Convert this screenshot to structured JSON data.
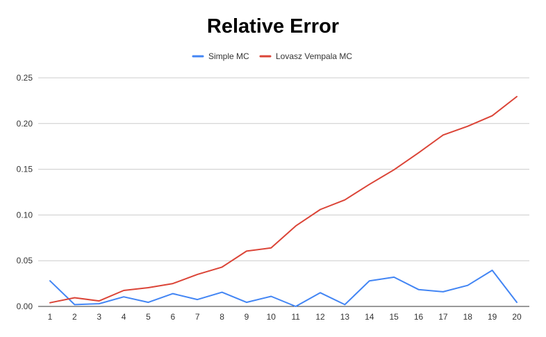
{
  "chart_data": {
    "type": "line",
    "title": "Relative Error",
    "xlabel": "",
    "ylabel": "",
    "categories": [
      "1",
      "2",
      "3",
      "4",
      "5",
      "6",
      "7",
      "8",
      "9",
      "10",
      "11",
      "12",
      "13",
      "14",
      "15",
      "16",
      "17",
      "18",
      "19",
      "20"
    ],
    "ylim": [
      0,
      0.25
    ],
    "yticks": [
      "0.00",
      "0.05",
      "0.10",
      "0.15",
      "0.20",
      "0.25"
    ],
    "grid": true,
    "legend_position": "top",
    "series": [
      {
        "name": "Simple MC",
        "color": "#4285f4",
        "values": [
          0.028,
          0.002,
          0.003,
          0.0105,
          0.0045,
          0.014,
          0.0075,
          0.0155,
          0.0045,
          0.011,
          0.0,
          0.015,
          0.002,
          0.028,
          0.032,
          0.0185,
          0.016,
          0.023,
          0.0395,
          0.0045
        ]
      },
      {
        "name": "Lovasz Vempala MC",
        "color": "#db4437",
        "values": [
          0.004,
          0.0095,
          0.006,
          0.0175,
          0.0205,
          0.025,
          0.035,
          0.043,
          0.0605,
          0.064,
          0.088,
          0.106,
          0.1165,
          0.1335,
          0.1495,
          0.168,
          0.1875,
          0.197,
          0.2085,
          0.2295
        ]
      }
    ]
  }
}
